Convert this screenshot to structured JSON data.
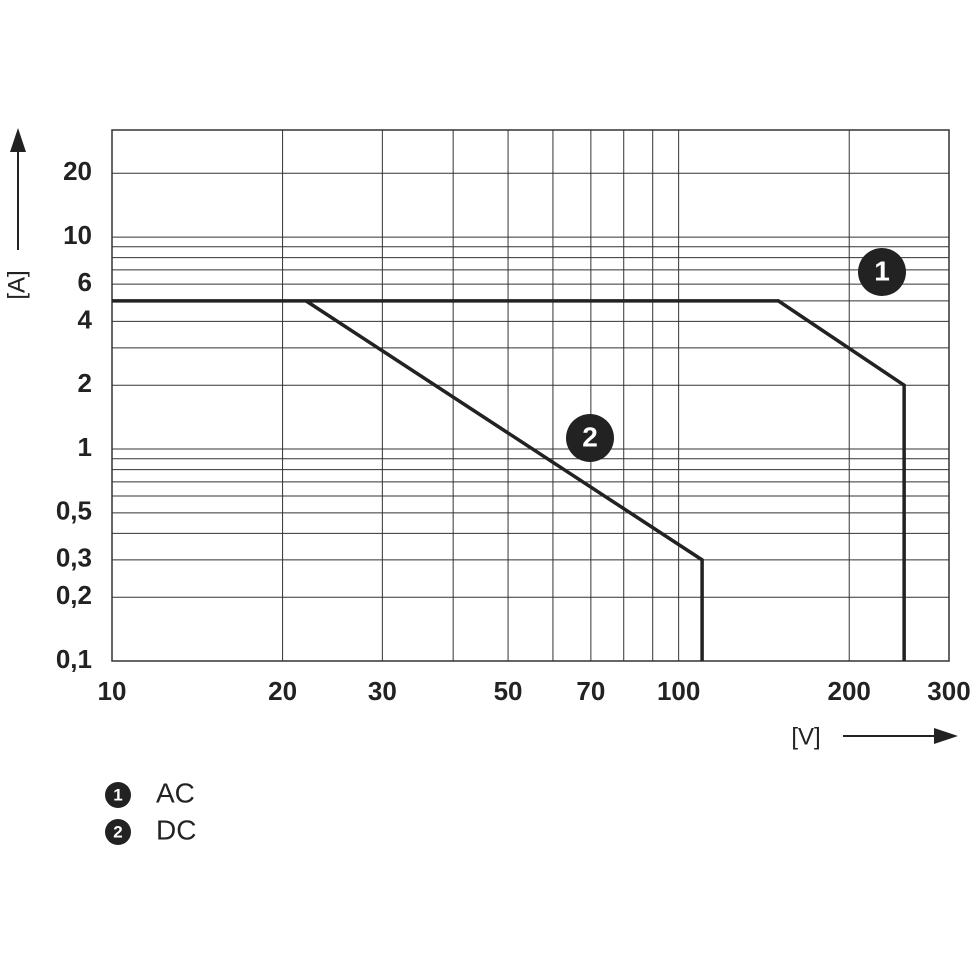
{
  "chart_data": {
    "type": "line",
    "x_axis_label": "[V]",
    "y_axis_label": "[A]",
    "log_x": true,
    "log_y": true,
    "grid": true,
    "xlim": [
      10,
      300
    ],
    "ylim": [
      0.1,
      32
    ],
    "xticks": [
      10,
      20,
      30,
      50,
      70,
      100,
      200,
      300
    ],
    "x_minor_grid": [
      40,
      60,
      80,
      90
    ],
    "yticks": [
      {
        "value": 0.1,
        "label": "0,1"
      },
      {
        "value": 0.2,
        "label": "0,2"
      },
      {
        "value": 0.3,
        "label": "0,3"
      },
      {
        "value": 0.5,
        "label": "0,5"
      },
      1,
      2,
      4,
      6,
      10,
      20
    ],
    "y_minor_grid": [
      0.4,
      0.6,
      0.7,
      0.8,
      0.9,
      3,
      5,
      7,
      8,
      9
    ],
    "series": [
      {
        "name": "AC",
        "marker": "1",
        "color": "#222222",
        "x": [
          10,
          150,
          250,
          250
        ],
        "values": [
          5,
          5,
          2,
          0.1
        ]
      },
      {
        "name": "DC",
        "marker": "2",
        "color": "#222222",
        "x": [
          22,
          110,
          110
        ],
        "values": [
          5,
          0.3,
          0.1
        ]
      }
    ]
  }
}
